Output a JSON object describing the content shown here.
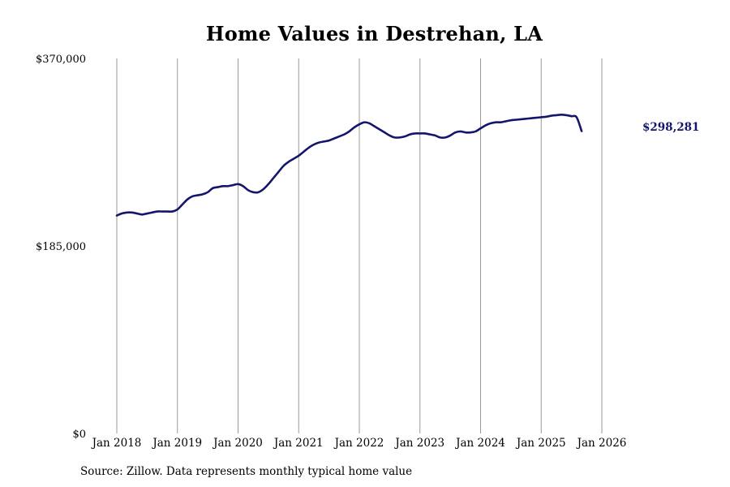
{
  "chart_data": {
    "type": "line",
    "title": "Home Values in Destrehan, LA",
    "source_note": "Source: Zillow. Data represents monthly typical home value",
    "xlabel": "",
    "ylabel": "",
    "x_start": "2018-01",
    "x_end": "2026-07",
    "x_ticks": [
      "Jan 2018",
      "Jan 2019",
      "Jan 2020",
      "Jan 2021",
      "Jan 2022",
      "Jan 2023",
      "Jan 2024",
      "Jan 2025",
      "Jan 2026"
    ],
    "y_ticks": [
      {
        "value": 0,
        "label": "$0"
      },
      {
        "value": 185000,
        "label": "$185,000"
      },
      {
        "value": 370000,
        "label": "$370,000"
      }
    ],
    "ylim": [
      0,
      370000
    ],
    "grid": "vertical",
    "line_color": "#14166b",
    "end_label": "$298,281",
    "series": [
      {
        "values": [
          215000,
          217000,
          218000,
          218000,
          217000,
          216000,
          217000,
          218000,
          219000,
          219000,
          219000,
          219000,
          221000,
          226000,
          231000,
          234000,
          235000,
          236000,
          238000,
          242000,
          243000,
          244000,
          244000,
          245000,
          246000,
          244000,
          240000,
          238000,
          238000,
          241000,
          246000,
          252000,
          258000,
          264000,
          268000,
          271000,
          274000,
          278000,
          282000,
          285000,
          287000,
          288000,
          289000,
          291000,
          293000,
          295000,
          298000,
          302000,
          305000,
          307000,
          306000,
          303000,
          300000,
          297000,
          294000,
          292000,
          292000,
          293000,
          295000,
          296000,
          296000,
          296000,
          295000,
          294000,
          292000,
          292000,
          294000,
          297000,
          298000,
          297000,
          297000,
          298000,
          301000,
          304000,
          306000,
          307000,
          307000,
          308000,
          309000,
          309500,
          310000,
          310500,
          311000,
          311500,
          312000,
          312500,
          313500,
          314000,
          314500,
          314000,
          313000,
          312000,
          298281
        ]
      }
    ]
  }
}
